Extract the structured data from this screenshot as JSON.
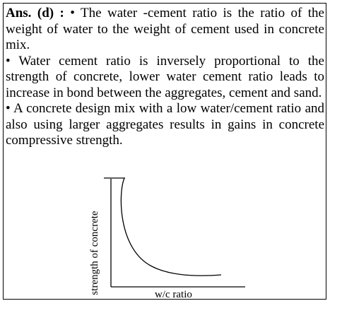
{
  "answer": {
    "prefix": "Ans. (d) :",
    "bullet": "•",
    "point1": "The water -cement ratio is the ratio of the weight of water to the weight of cement used in concrete mix.",
    "point2": "Water cement ratio is inversely proportional to the strength of concrete, lower water cement ratio leads to increase in bond between the aggregates, cement and sand.",
    "point3": "A concrete design mix with a low water/cement ratio and also using larger aggregates results in gains in concrete compressive strength."
  },
  "graph": {
    "ylabel": "strength of concrete",
    "xlabel": "w/c ratio"
  }
}
